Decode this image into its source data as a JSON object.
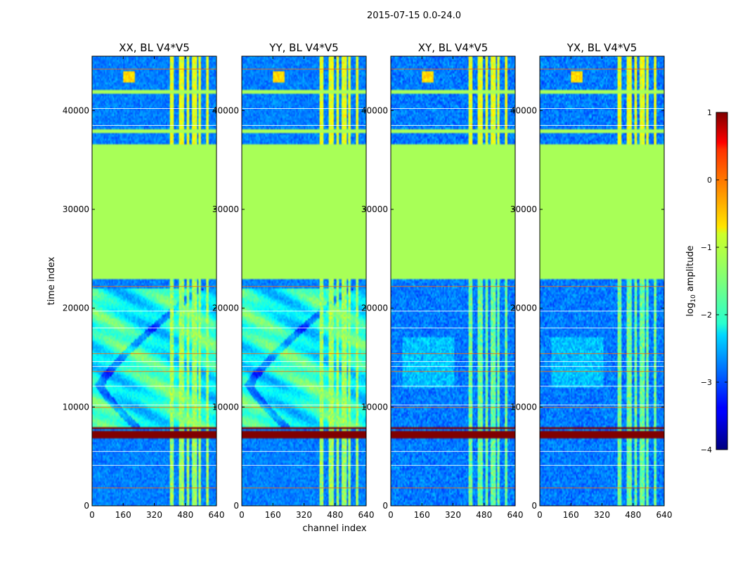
{
  "chart_data": {
    "type": "heatmap",
    "title": "2015-07-15 0.0-24.0",
    "xlabel": "channel index",
    "ylabel": "time index",
    "xlim": [
      0,
      640
    ],
    "ylim": [
      0,
      45500
    ],
    "x_ticks": [
      0,
      160,
      320,
      480,
      640
    ],
    "y_ticks": [
      0,
      10000,
      20000,
      30000,
      40000
    ],
    "panels": [
      {
        "title": "XX, BL V4*V5",
        "kind": "parallel"
      },
      {
        "title": "YY, BL V4*V5",
        "kind": "parallel"
      },
      {
        "title": "XY, BL V4*V5",
        "kind": "cross"
      },
      {
        "title": "YX, BL V4*V5",
        "kind": "cross"
      }
    ],
    "colorbar": {
      "label_prefix": "log",
      "label_sub": "10",
      "label_suffix": " amplitude",
      "range": [
        -4,
        1
      ],
      "ticks": [
        1,
        0,
        -1,
        -2,
        -3,
        -4
      ],
      "tick_labels": [
        "1",
        "0",
        "−1",
        "−2",
        "−3",
        "−4"
      ],
      "colormap": "jet"
    },
    "uniform_value": -1.3,
    "uniform_bands": [
      [
        23000,
        36500
      ],
      [
        37700,
        38200
      ],
      [
        41700,
        42000
      ]
    ],
    "saturated_value": 1,
    "saturated_bands": [
      [
        6800,
        7600
      ],
      [
        7700,
        7900
      ]
    ],
    "bright_channel_ranges": [
      [
        400,
        420
      ],
      [
        445,
        470
      ],
      [
        490,
        500
      ],
      [
        512,
        540
      ],
      [
        548,
        560
      ],
      [
        588,
        600
      ]
    ],
    "flag_lines": [
      1800,
      4100,
      5500,
      9950,
      10200,
      12100,
      13600,
      14100,
      14600,
      15400,
      18000,
      19700,
      22200,
      38500,
      40200,
      44200
    ]
  }
}
